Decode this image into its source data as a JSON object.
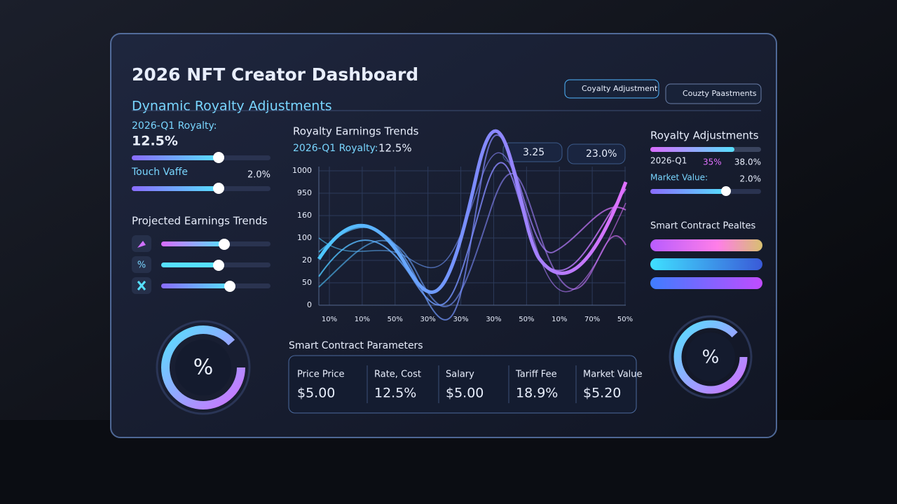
{
  "header": {
    "title": "2026 NFT Creator Dashboard",
    "subtitle": "Dynamic Royalty Adjustments",
    "buttons": [
      "Coyalty Adjustment",
      "Couzty Paastments"
    ]
  },
  "left": {
    "royalty_label": "2026-Q1 Royalty:",
    "royalty_value": "12.5%",
    "touch_label": "Touch Vaffe",
    "touch_value": "2.0%",
    "projected_title": "Projected Earnings Trends",
    "icons": [
      "%"
    ],
    "gauge": "%"
  },
  "center": {
    "title": "Royalty Earnings Trends",
    "subtitle_label": "2026-Q1 Royalty:",
    "subtitle_value": "12.5%",
    "badges": [
      "3.25",
      "23.0%"
    ],
    "y_labels": [
      "1000",
      "950",
      "160",
      "100",
      "20",
      "50",
      "0"
    ],
    "x_labels": [
      "10%",
      "10%",
      "50%",
      "30%",
      "30%",
      "30%",
      "50%",
      "10%",
      "70%",
      "50%"
    ]
  },
  "params": {
    "title": "Smart Contract Parameters",
    "items": [
      {
        "label": "Price Price",
        "value": "$5.00"
      },
      {
        "label": "Rate, Cost",
        "value": "12.5%"
      },
      {
        "label": "Salary",
        "value": "$5.00"
      },
      {
        "label": "Tariff Fee",
        "value": "18.9%"
      },
      {
        "label": "Market Value",
        "value": "$5.20"
      }
    ]
  },
  "right": {
    "title": "Royalty Adjustments",
    "row_label": "2026-Q1",
    "row_mid": "35%",
    "row_value": "38.0%",
    "market_label": "Market Value:",
    "market_value": "2.0%",
    "contract_title": "Smart Contract Pealtes",
    "gauge": "%"
  }
}
